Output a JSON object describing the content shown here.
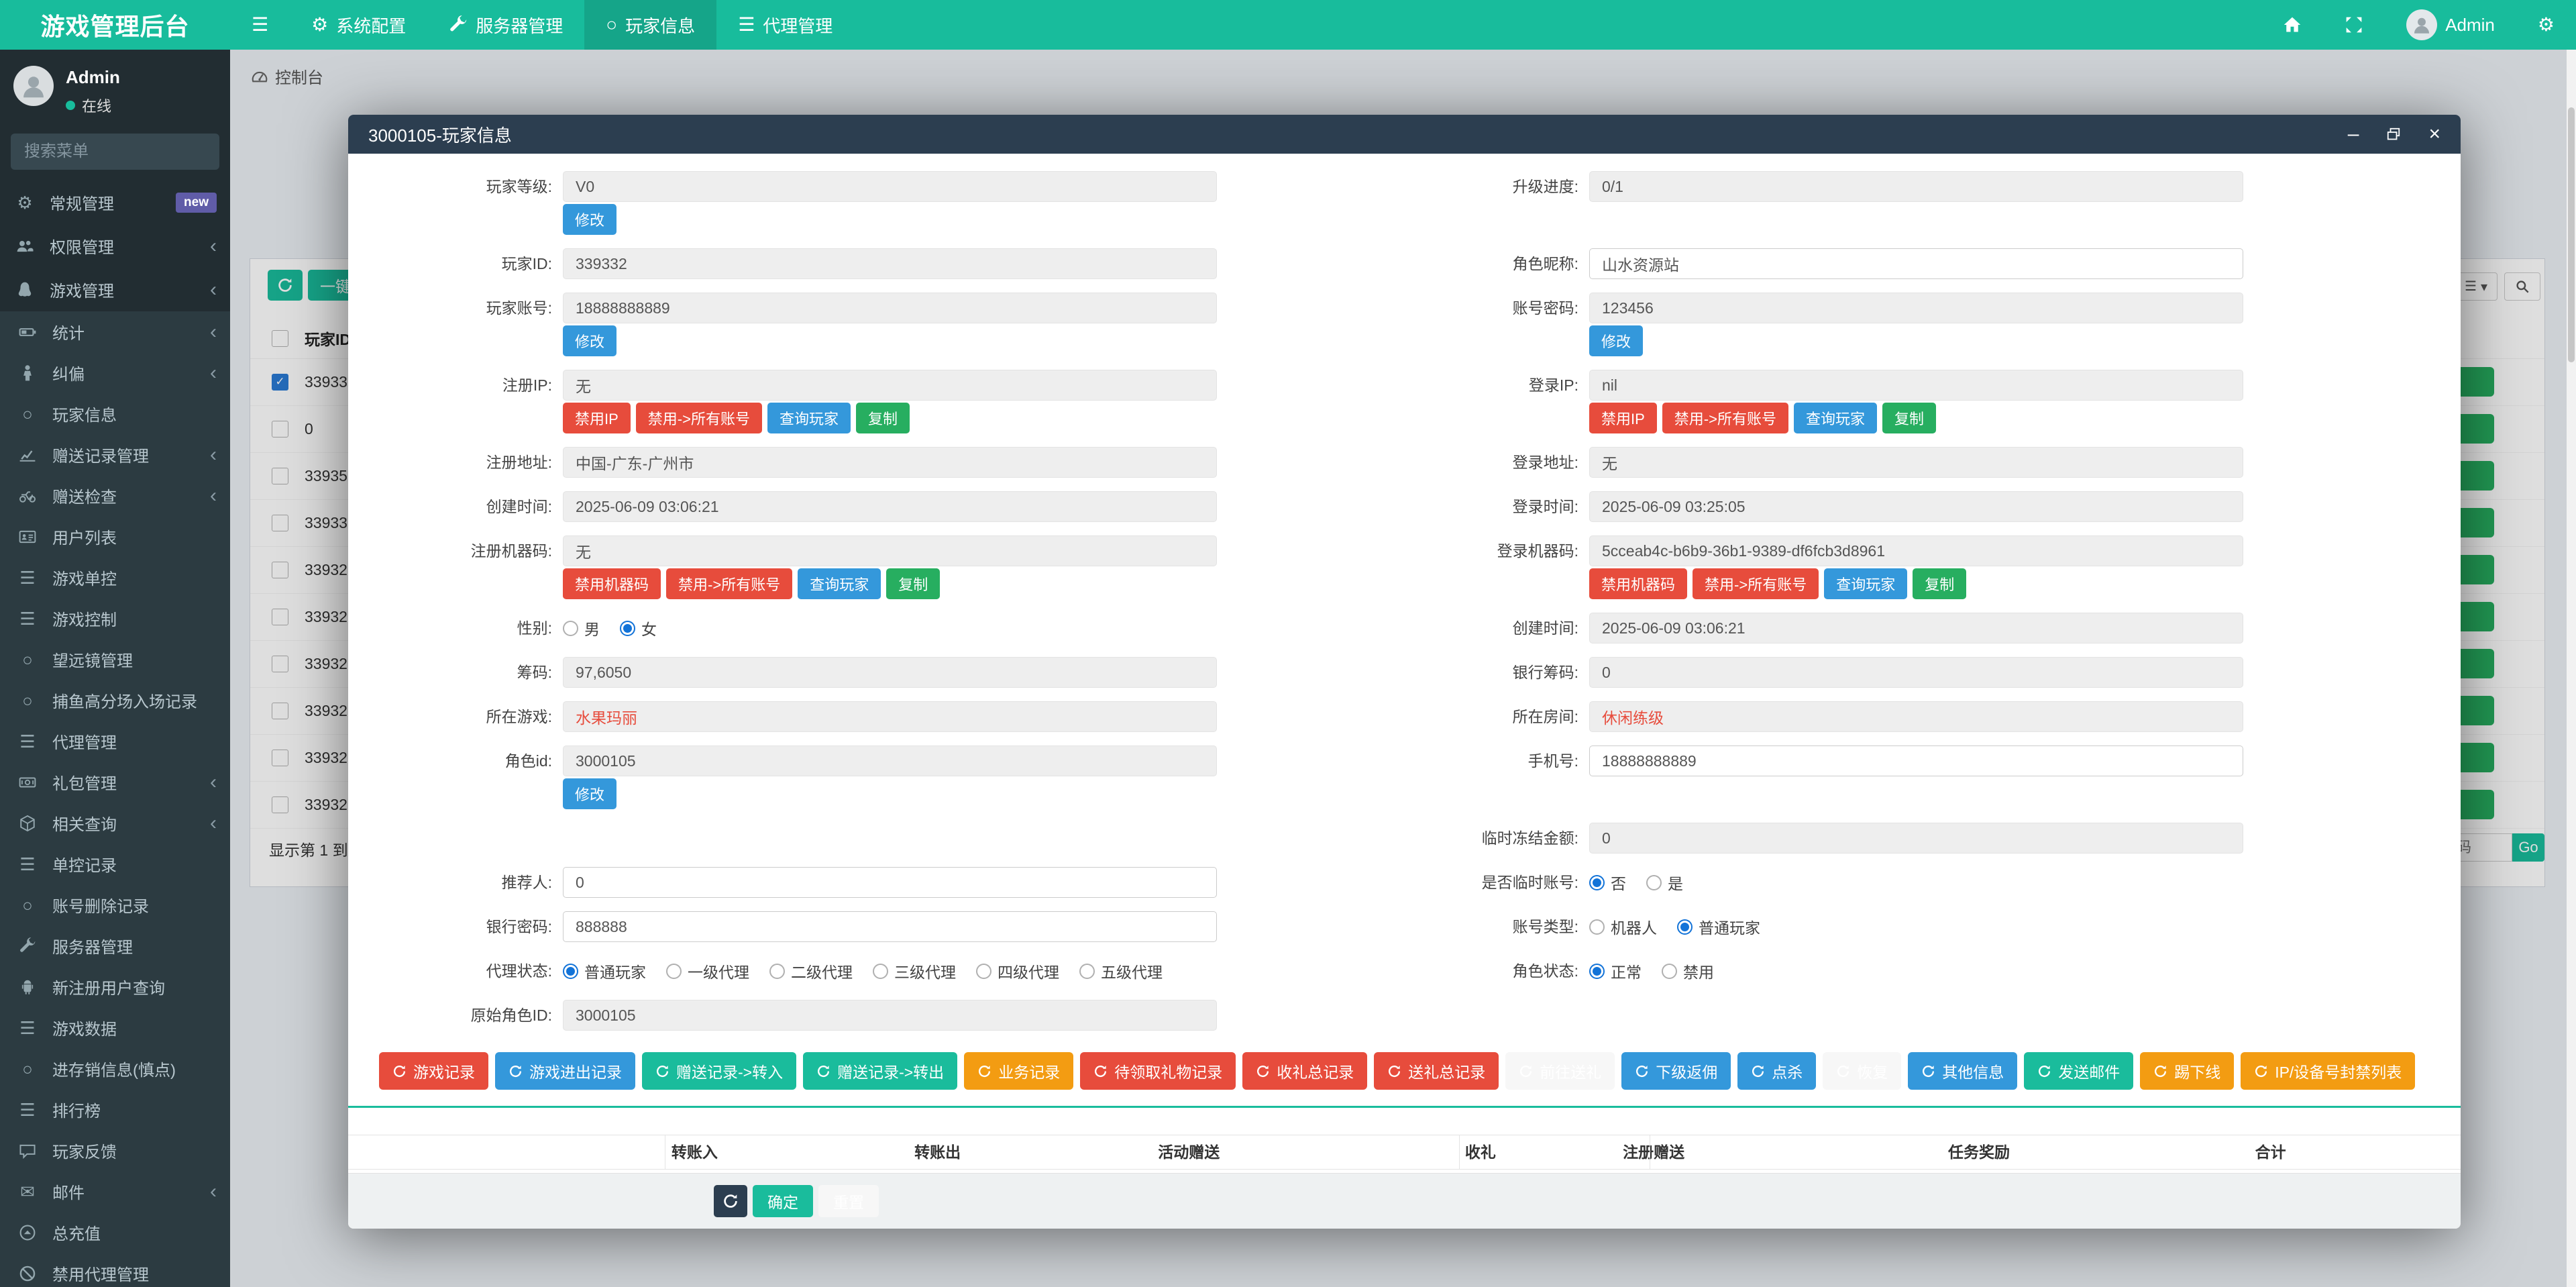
{
  "colors": {
    "accent_teal": "#18bc9c",
    "navy": "#2c3e50",
    "red": "#e74c3c",
    "blue": "#3498db",
    "green": "#27ae60",
    "orange": "#f39c12",
    "badge_purple": "#605ca8"
  },
  "navbar": {
    "brand": "游戏管理后台",
    "menu": [
      {
        "label": "系统配置",
        "icon": "gear"
      },
      {
        "label": "服务器管理",
        "icon": "wrench"
      },
      {
        "label": "玩家信息",
        "icon": "circle",
        "active": true
      },
      {
        "label": "代理管理",
        "icon": "list"
      }
    ],
    "right": {
      "username": "Admin"
    }
  },
  "sidebar": {
    "user": {
      "name": "Admin",
      "status": "在线"
    },
    "search_placeholder": "搜索菜单",
    "items": [
      {
        "label": "常规管理",
        "icon": "gear",
        "badge": "new"
      },
      {
        "label": "权限管理",
        "icon": "users",
        "chevron": true
      },
      {
        "label": "游戏管理",
        "icon": "penguin",
        "chevron": true
      }
    ],
    "submenu": [
      {
        "label": "统计",
        "icon": "battery",
        "chevron": true
      },
      {
        "label": "纠偏",
        "icon": "person",
        "chevron": true
      },
      {
        "label": "玩家信息",
        "icon": "circle"
      },
      {
        "label": "赠送记录管理",
        "icon": "chart",
        "chevron": true
      },
      {
        "label": "赠送检查",
        "icon": "motorcycle",
        "chevron": true
      },
      {
        "label": "用户列表",
        "icon": "idcard"
      },
      {
        "label": "游戏单控",
        "icon": "list"
      },
      {
        "label": "游戏控制",
        "icon": "list"
      },
      {
        "label": "望远镜管理",
        "icon": "circle"
      },
      {
        "label": "捕鱼高分场入场记录",
        "icon": "circle"
      },
      {
        "label": "代理管理",
        "icon": "list"
      },
      {
        "label": "礼包管理",
        "icon": "money",
        "chevron": true
      },
      {
        "label": "相关查询",
        "icon": "cube",
        "chevron": true
      },
      {
        "label": "单控记录",
        "icon": "list"
      },
      {
        "label": "账号删除记录",
        "icon": "circle"
      },
      {
        "label": "服务器管理",
        "icon": "wrench"
      },
      {
        "label": "新注册用户查询",
        "icon": "android"
      },
      {
        "label": "游戏数据",
        "icon": "list"
      },
      {
        "label": "进存销信息(慎点)",
        "icon": "circle"
      },
      {
        "label": "排行榜",
        "icon": "list"
      },
      {
        "label": "玩家反馈",
        "icon": "comment"
      },
      {
        "label": "邮件",
        "icon": "envelope",
        "chevron": true
      },
      {
        "label": "总充值",
        "icon": "arrowcircleup"
      },
      {
        "label": "禁用代理管理",
        "icon": "ban"
      }
    ]
  },
  "breadcrumb": {
    "label": "控制台"
  },
  "background": {
    "bulk_button": "一键",
    "table_header": "玩家ID",
    "rows": [
      {
        "id": "33933",
        "checked": true
      },
      {
        "id": "0",
        "checked": false
      },
      {
        "id": "33935",
        "checked": false
      },
      {
        "id": "33933",
        "checked": false
      },
      {
        "id": "33932",
        "checked": false
      },
      {
        "id": "33932",
        "checked": false
      },
      {
        "id": "33932",
        "checked": false
      },
      {
        "id": "33932",
        "checked": false
      },
      {
        "id": "33932",
        "checked": false
      },
      {
        "id": "33932",
        "checked": false
      }
    ],
    "summary": "显示第 1 到第 10",
    "page_placeholder": "页码",
    "go": "Go"
  },
  "modal": {
    "title": "3000105-玩家信息",
    "rows": [
      {
        "l": {
          "label": "玩家等级:",
          "value": "V0",
          "btns": [
            {
              "label": "修改",
              "color": "blue"
            }
          ]
        },
        "r": {
          "label": "升级进度:",
          "value": "0/1"
        }
      },
      {
        "l": {
          "label": "玩家ID:",
          "value": "339332"
        },
        "r": {
          "label": "角色昵称:",
          "value": "山水资源站",
          "editable": true
        }
      },
      {
        "l": {
          "label": "玩家账号:",
          "value": "18888888889",
          "btns": [
            {
              "label": "修改",
              "color": "blue"
            }
          ]
        },
        "r": {
          "label": "账号密码:",
          "value": "123456",
          "btns": [
            {
              "label": "修改",
              "color": "blue"
            }
          ]
        }
      },
      {
        "l": {
          "label": "注册IP:",
          "value": "无",
          "btns": [
            {
              "label": "禁用IP",
              "color": "red"
            },
            {
              "label": "禁用->所有账号",
              "color": "red"
            },
            {
              "label": "查询玩家",
              "color": "blue"
            },
            {
              "label": "复制",
              "color": "green"
            }
          ]
        },
        "r": {
          "label": "登录IP:",
          "value": "nil",
          "btns": [
            {
              "label": "禁用IP",
              "color": "red"
            },
            {
              "label": "禁用->所有账号",
              "color": "red"
            },
            {
              "label": "查询玩家",
              "color": "blue"
            },
            {
              "label": "复制",
              "color": "green"
            }
          ]
        }
      },
      {
        "l": {
          "label": "注册地址:",
          "value": "中国-广东-广州市"
        },
        "r": {
          "label": "登录地址:",
          "value": "无"
        }
      },
      {
        "l": {
          "label": "创建时间:",
          "value": "2025-06-09 03:06:21"
        },
        "r": {
          "label": "登录时间:",
          "value": "2025-06-09 03:25:05"
        }
      },
      {
        "l": {
          "label": "注册机器码:",
          "value": "无",
          "btns": [
            {
              "label": "禁用机器码",
              "color": "red"
            },
            {
              "label": "禁用->所有账号",
              "color": "red"
            },
            {
              "label": "查询玩家",
              "color": "blue"
            },
            {
              "label": "复制",
              "color": "green"
            }
          ]
        },
        "r": {
          "label": "登录机器码:",
          "value": "5cceab4c-b6b9-36b1-9389-df6fcb3d8961",
          "btns": [
            {
              "label": "禁用机器码",
              "color": "red"
            },
            {
              "label": "禁用->所有账号",
              "color": "red"
            },
            {
              "label": "查询玩家",
              "color": "blue"
            },
            {
              "label": "复制",
              "color": "green"
            }
          ]
        }
      },
      {
        "l": {
          "label": "性别:",
          "radios": [
            {
              "label": "男",
              "on": false
            },
            {
              "label": "女",
              "on": true
            }
          ]
        },
        "r": {
          "label": "创建时间:",
          "value": "2025-06-09 03:06:21"
        }
      },
      {
        "l": {
          "label": "筹码:",
          "value": "97,6050"
        },
        "r": {
          "label": "银行筹码:",
          "value": "0"
        }
      },
      {
        "l": {
          "label": "所在游戏:",
          "value": "水果玛丽",
          "red": true
        },
        "r": {
          "label": "所在房间:",
          "value": "休闲练级",
          "red": true
        }
      },
      {
        "l": {
          "label": "角色id:",
          "value": "3000105",
          "btns": [
            {
              "label": "修改",
              "color": "blue"
            }
          ]
        },
        "r": {
          "label": "手机号:",
          "value": "18888888889",
          "editable": true
        }
      },
      {
        "l": null,
        "r": {
          "label": "临时冻结金额:",
          "value": "0"
        }
      },
      {
        "l": {
          "label": "推荐人:",
          "value": "0",
          "editable": true
        },
        "r": {
          "label": "是否临时账号:",
          "radios": [
            {
              "label": "否",
              "on": true
            },
            {
              "label": "是",
              "on": false
            }
          ]
        }
      },
      {
        "l": {
          "label": "银行密码:",
          "value": "888888",
          "editable": true
        },
        "r": {
          "label": "账号类型:",
          "radios": [
            {
              "label": "机器人",
              "on": false
            },
            {
              "label": "普通玩家",
              "on": true
            }
          ]
        }
      },
      {
        "l": {
          "label": "代理状态:",
          "radios": [
            {
              "label": "普通玩家",
              "on": true
            },
            {
              "label": "一级代理",
              "on": false
            },
            {
              "label": "二级代理",
              "on": false
            },
            {
              "label": "三级代理",
              "on": false
            },
            {
              "label": "四级代理",
              "on": false
            },
            {
              "label": "五级代理",
              "on": false
            }
          ]
        },
        "r": {
          "label": "角色状态:",
          "radios": [
            {
              "label": "正常",
              "on": true
            },
            {
              "label": "禁用",
              "on": false
            }
          ]
        }
      },
      {
        "l": {
          "label": "原始角色ID:",
          "value": "3000105"
        },
        "r": null
      }
    ],
    "actions": [
      {
        "label": "游戏记录",
        "color": "red"
      },
      {
        "label": "游戏进出记录",
        "color": "blue"
      },
      {
        "label": "赠送记录->转入",
        "color": "teal"
      },
      {
        "label": "赠送记录->转出",
        "color": "teal"
      },
      {
        "label": "业务记录",
        "color": "orange"
      },
      {
        "label": "待领取礼物记录",
        "color": "red"
      },
      {
        "label": "收礼总记录",
        "color": "red"
      },
      {
        "label": "送礼总记录",
        "color": "red"
      },
      {
        "label": "前往送礼",
        "color": "light"
      },
      {
        "label": "下级返佣",
        "color": "blue"
      },
      {
        "label": "点杀",
        "color": "blue"
      },
      {
        "label": "恢复",
        "color": "light"
      },
      {
        "label": "其他信息",
        "color": "blue"
      },
      {
        "label": "发送邮件",
        "color": "teal"
      },
      {
        "label": "踢下线",
        "color": "orange"
      },
      {
        "label": "IP/设备号封禁列表",
        "color": "orange"
      }
    ],
    "table_headers": [
      "转账入",
      "转账出",
      "活动赠送",
      "收礼",
      "注册赠送",
      "任务奖励",
      "合计"
    ],
    "footer": {
      "confirm": "确定",
      "reset": "重置"
    }
  }
}
